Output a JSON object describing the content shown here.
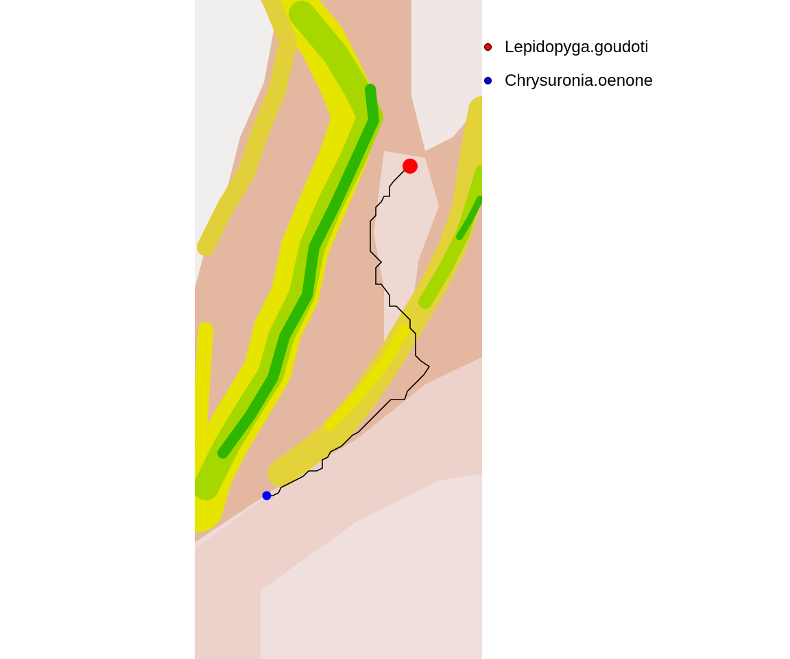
{
  "legend": {
    "items": [
      {
        "label": "Lepidopyga.goudoti",
        "color": "#ff0000"
      },
      {
        "label": "Chrysuronia.oenone",
        "color": "#0000ff"
      }
    ]
  },
  "points": {
    "origin": {
      "name": "Lepidopyga.goudoti",
      "color": "#ff0000"
    },
    "destination": {
      "name": "Chrysuronia.oenone",
      "color": "#0000ff"
    }
  },
  "raster": {
    "palette": [
      "#efe7e7",
      "#eccfc7",
      "#e6b298",
      "#e0a779",
      "#d8c63c",
      "#e8e400",
      "#9fd800",
      "#31b800"
    ]
  },
  "route": {
    "color": "#000000"
  }
}
